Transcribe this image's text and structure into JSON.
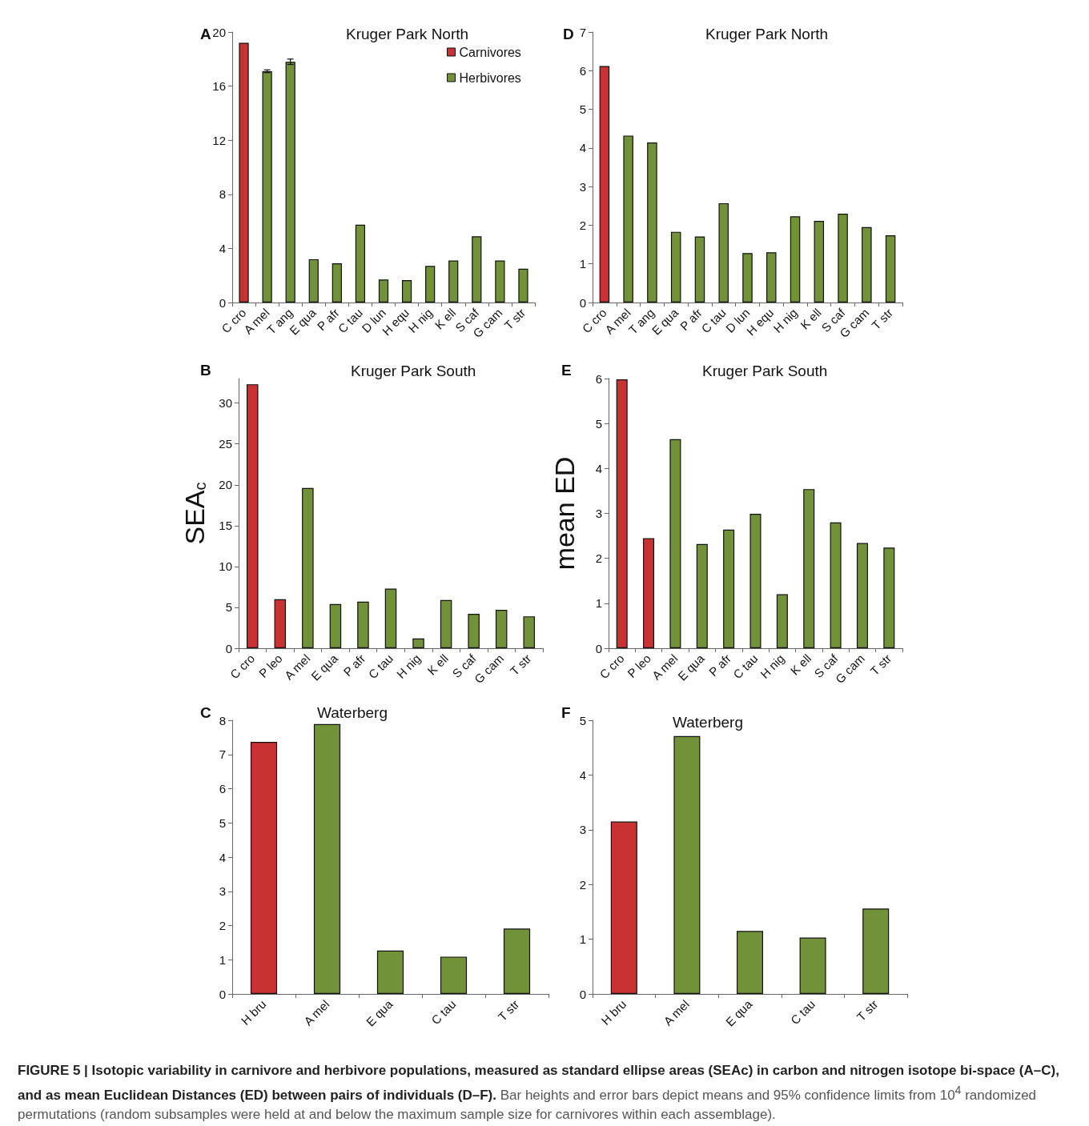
{
  "chart_data": [
    {
      "type": "bar",
      "title": "Kruger Park North",
      "annotations": [
        "A"
      ],
      "legend": "top right",
      "categories": [
        "C cro",
        "A mel",
        "T ang",
        "E qua",
        "P afr",
        "C tau",
        "D lun",
        "H equ",
        "H nig",
        "K ell",
        "S caf",
        "G cam",
        "T str"
      ],
      "ylim": [
        0,
        20
      ],
      "yticks": [
        0,
        4,
        8,
        12,
        16,
        20
      ],
      "series": [
        {
          "name": "Carnivores",
          "color": "#c83232",
          "values": [
            19.2,
            null,
            null,
            null,
            null,
            null,
            null,
            null,
            null,
            null,
            null,
            null,
            null
          ]
        },
        {
          "name": "Herbivores",
          "color": "#72923a",
          "values": [
            null,
            17.1,
            17.8,
            3.2,
            2.9,
            5.75,
            1.7,
            1.65,
            2.7,
            3.1,
            4.9,
            3.1,
            2.5
          ],
          "errors": [
            null,
            0.1,
            0.2,
            null,
            null,
            null,
            null,
            null,
            null,
            null,
            null,
            null,
            null
          ]
        }
      ]
    },
    {
      "type": "bar",
      "title": "Kruger Park North",
      "annotations": [
        "D"
      ],
      "categories": [
        "C cro",
        "A mel",
        "T ang",
        "E qua",
        "P afr",
        "C tau",
        "D lun",
        "H equ",
        "H nig",
        "K ell",
        "S caf",
        "G cam",
        "T str"
      ],
      "ylim": [
        0,
        7
      ],
      "yticks": [
        0,
        1,
        2,
        3,
        4,
        5,
        6,
        7
      ],
      "values": [
        6.12,
        4.32,
        4.14,
        1.83,
        1.71,
        2.57,
        1.28,
        1.3,
        2.23,
        2.11,
        2.3,
        1.95,
        1.74
      ],
      "colors": [
        "#c83232",
        "#72923a",
        "#72923a",
        "#72923a",
        "#72923a",
        "#72923a",
        "#72923a",
        "#72923a",
        "#72923a",
        "#72923a",
        "#72923a",
        "#72923a",
        "#72923a"
      ]
    },
    {
      "type": "bar",
      "title": "Kruger Park South",
      "ylabel": "SEA$_{c}$",
      "annotations": [
        "B"
      ],
      "categories": [
        "C cro",
        "P leo",
        "A mel",
        "E qua",
        "P afr",
        "C tau",
        "H nig",
        "K ell",
        "S caf",
        "G cam",
        "T str"
      ],
      "ylim": [
        0,
        33
      ],
      "yticks": [
        0,
        5,
        10,
        15,
        20,
        25,
        30
      ],
      "values": [
        32.3,
        6.0,
        19.6,
        5.4,
        5.7,
        7.3,
        1.2,
        5.9,
        4.2,
        4.7,
        3.9
      ],
      "colors": [
        "#c83232",
        "#c83232",
        "#72923a",
        "#72923a",
        "#72923a",
        "#72923a",
        "#72923a",
        "#72923a",
        "#72923a",
        "#72923a",
        "#72923a"
      ]
    },
    {
      "type": "bar",
      "title": "Kruger Park South",
      "ylabel": "mean ED",
      "annotations": [
        "E"
      ],
      "categories": [
        "C cro",
        "P leo",
        "A mel",
        "E qua",
        "P afr",
        "C tau",
        "H nig",
        "K ell",
        "S caf",
        "G cam",
        "T str"
      ],
      "ylim": [
        0,
        6
      ],
      "yticks": [
        0,
        1,
        2,
        3,
        4,
        5,
        6
      ],
      "values": [
        5.98,
        2.45,
        4.65,
        2.32,
        2.64,
        2.99,
        1.2,
        3.54,
        2.8,
        2.34,
        2.24
      ],
      "colors": [
        "#c83232",
        "#c83232",
        "#72923a",
        "#72923a",
        "#72923a",
        "#72923a",
        "#72923a",
        "#72923a",
        "#72923a",
        "#72923a",
        "#72923a"
      ]
    },
    {
      "type": "bar",
      "title": "Waterberg",
      "annotations": [
        "C"
      ],
      "categories": [
        "H bru",
        "A mel",
        "E qua",
        "C tau",
        "T str"
      ],
      "ylim": [
        0,
        8
      ],
      "yticks": [
        0,
        1,
        2,
        3,
        4,
        5,
        6,
        7,
        8
      ],
      "values": [
        7.37,
        7.89,
        1.27,
        1.09,
        1.91
      ],
      "colors": [
        "#c83232",
        "#72923a",
        "#72923a",
        "#72923a",
        "#72923a"
      ]
    },
    {
      "type": "bar",
      "title": "Waterberg",
      "annotations": [
        "F",
        "FIGURE 5 | Isotopic variability in carnivore and herbivore populations, measured as standard ellipse areas (SEAc) in carbon and nitrogen isotope bi-space (A–C), and as mean Euclidean Distances (ED) between pairs of individuals (D–F).",
        "Bar heights and error bars depict means and 95% confidence limits from 10$^{4}$ randomized permutations (random subsamples were held at and below the maximum sample size for carnivores within each assemblage)."
      ],
      "categories": [
        "H bru",
        "A mel",
        "E qua",
        "C tau",
        "T str"
      ],
      "ylim": [
        0,
        5
      ],
      "yticks": [
        0,
        1,
        2,
        3,
        4,
        5
      ],
      "values": [
        3.15,
        4.71,
        1.15,
        1.03,
        1.56
      ],
      "colors": [
        "#c83232",
        "#72923a",
        "#72923a",
        "#72923a",
        "#72923a"
      ]
    }
  ]
}
